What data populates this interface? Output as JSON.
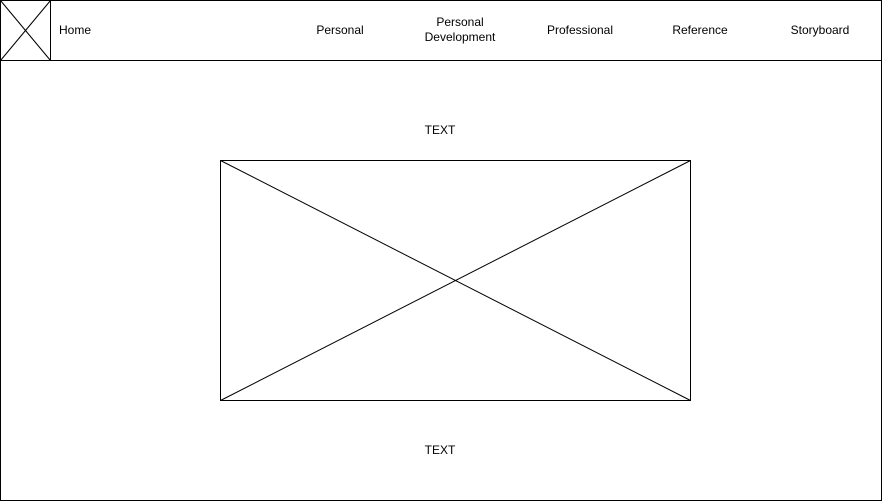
{
  "header": {
    "logo_icon": "image-placeholder-icon",
    "nav": {
      "home": "Home",
      "personal": "Personal",
      "personal_development_line1": "Personal",
      "personal_development_line2": "Development",
      "professional": "Professional",
      "reference": "Reference",
      "storyboard": "Storyboard"
    }
  },
  "main": {
    "top_text": "TEXT",
    "image_icon": "image-placeholder-icon",
    "bottom_text": "TEXT"
  },
  "colors": {
    "stroke": "#000000",
    "background": "#ffffff"
  }
}
